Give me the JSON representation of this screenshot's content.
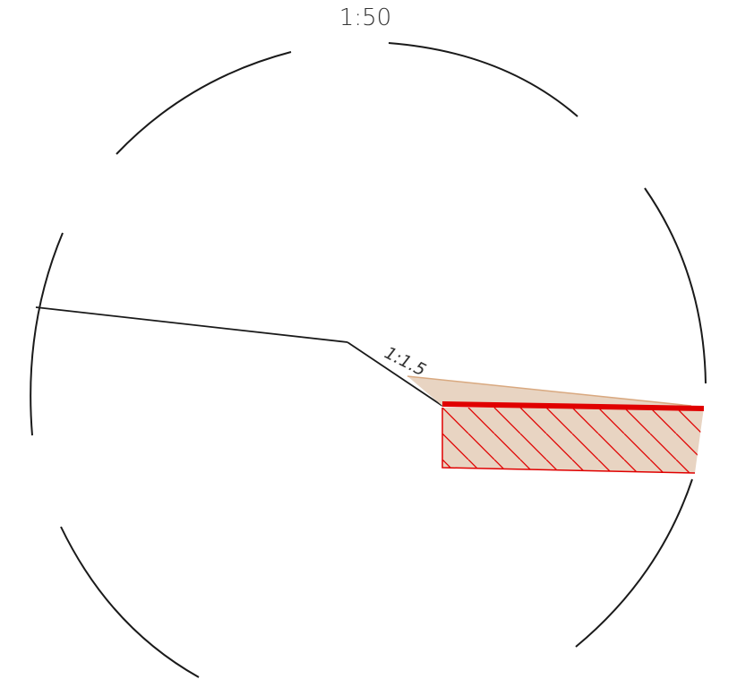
{
  "drawing": {
    "scale_label": "1:50",
    "slope_label": "1:1.5"
  },
  "colors": {
    "line": "#1a1a1a",
    "section_edge": "#e00000",
    "fill": "#e8d4c2",
    "fill_edge": "#d9a980"
  }
}
